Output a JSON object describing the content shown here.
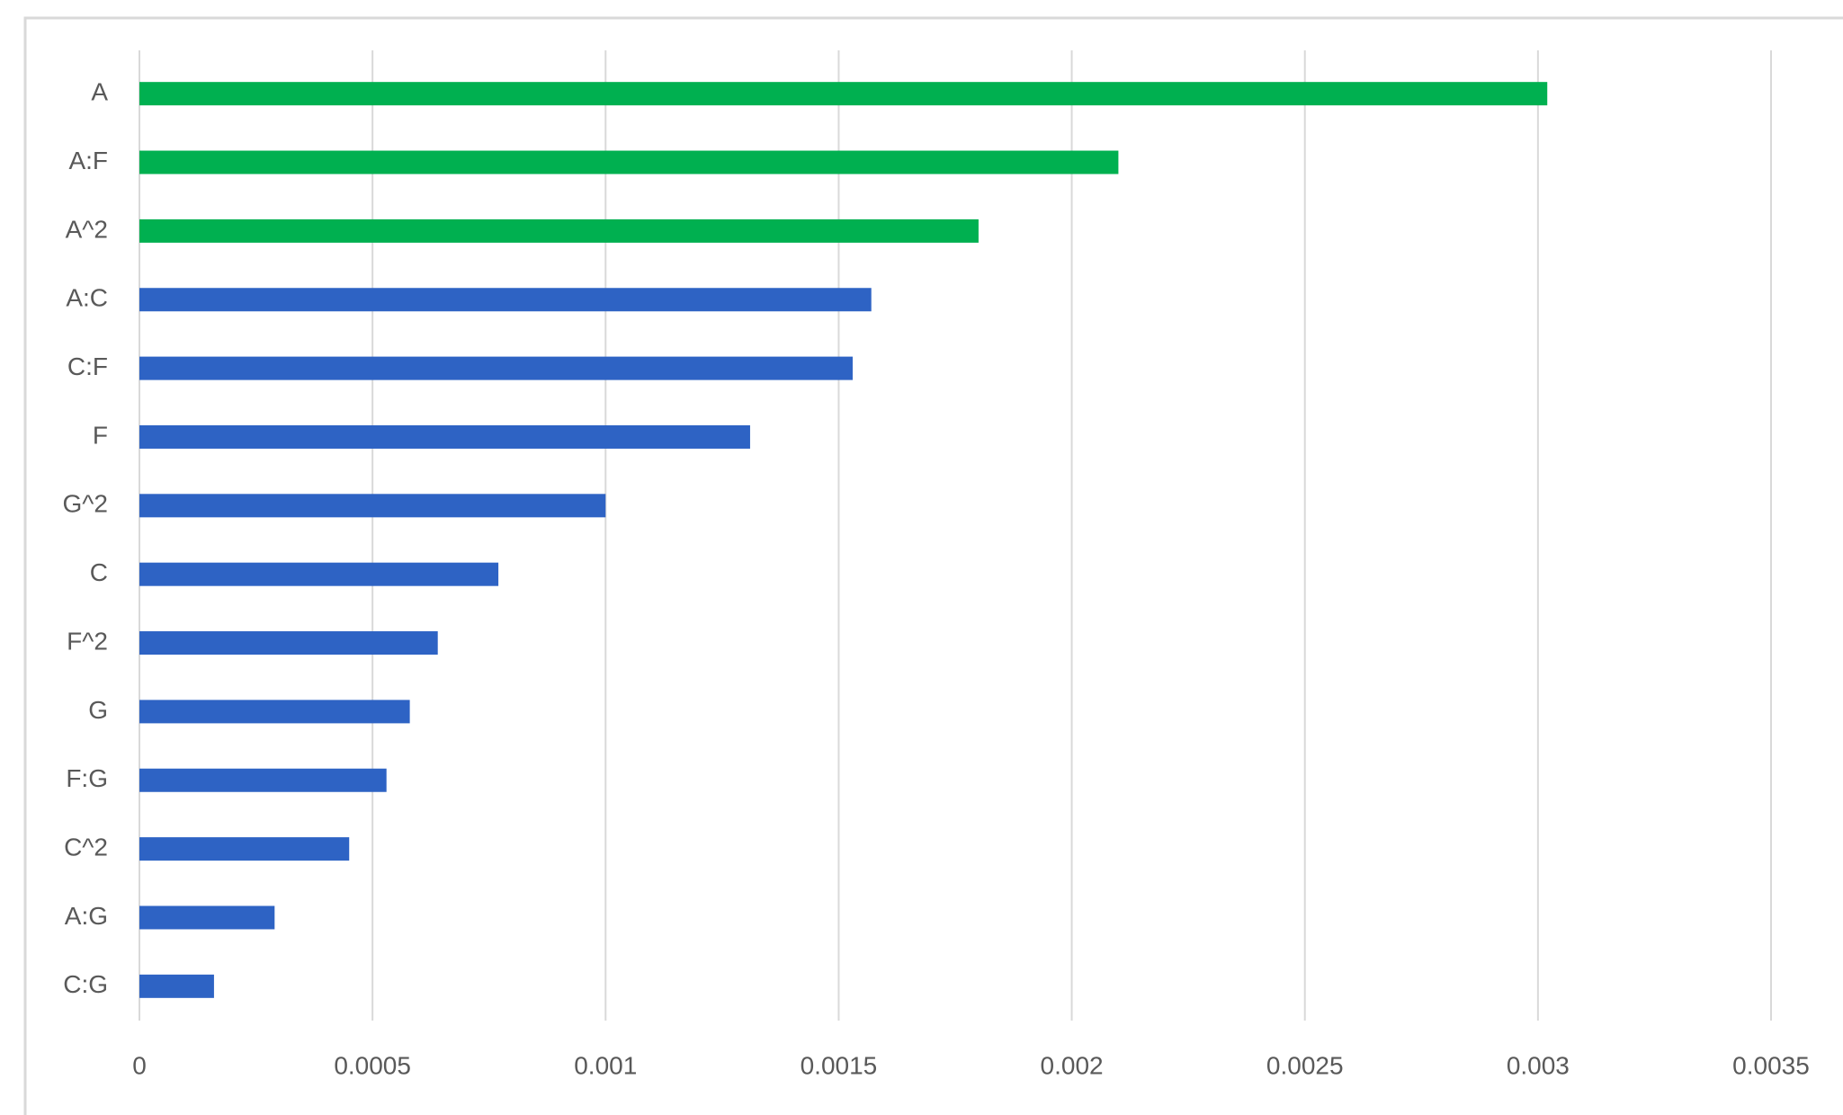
{
  "chart_data": {
    "type": "barh",
    "categories": [
      "A",
      "A:F",
      "A^2",
      "A:C",
      "C:F",
      "F",
      "G^2",
      "C",
      "F^2",
      "G",
      "F:G",
      "C^2",
      "A:G",
      "C:G"
    ],
    "values": [
      0.00302,
      0.0021,
      0.0018,
      0.00157,
      0.00153,
      0.00131,
      0.001,
      0.00077,
      0.00064,
      0.00058,
      0.00053,
      0.00045,
      0.00029,
      0.00016
    ],
    "colors": [
      "#00b050",
      "#00b050",
      "#00b050",
      "#2e63c4",
      "#2e63c4",
      "#2e63c4",
      "#2e63c4",
      "#2e63c4",
      "#2e63c4",
      "#2e63c4",
      "#2e63c4",
      "#2e63c4",
      "#2e63c4",
      "#2e63c4"
    ],
    "xlim": [
      0,
      0.0035
    ],
    "xticks": [
      0,
      0.0005,
      0.001,
      0.0015,
      0.002,
      0.0025,
      0.003,
      0.0035
    ],
    "grid": true
  }
}
